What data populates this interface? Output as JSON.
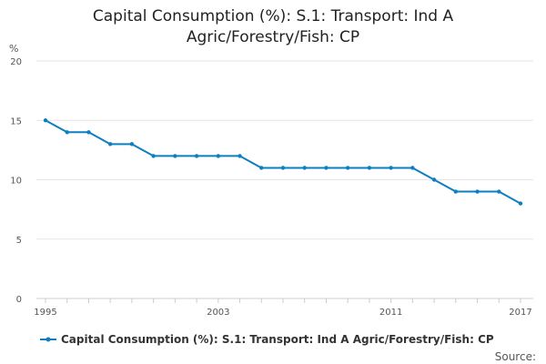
{
  "chart_data": {
    "type": "line",
    "title_lines": [
      "Capital Consumption (%): S.1: Transport: Ind A",
      "Agric/Forestry/Fish: CP"
    ],
    "y_unit": "%",
    "ylim": [
      0,
      20
    ],
    "y_ticks": [
      "0",
      "5",
      "10",
      "15",
      "20"
    ],
    "xlim": [
      1995,
      2017
    ],
    "x_ticks": [
      "1995",
      "2003",
      "2011",
      "2017"
    ],
    "series": [
      {
        "name": "Capital Consumption (%): S.1: Transport: Ind A Agric/Forestry/Fish: CP",
        "color": "#0b7fc1",
        "x": [
          1995,
          1996,
          1997,
          1998,
          1999,
          2000,
          2001,
          2002,
          2003,
          2004,
          2005,
          2006,
          2007,
          2008,
          2009,
          2010,
          2011,
          2012,
          2013,
          2014,
          2015,
          2016,
          2017
        ],
        "values": [
          15,
          14,
          14,
          13,
          13,
          12,
          12,
          12,
          12,
          12,
          11,
          11,
          11,
          11,
          11,
          11,
          11,
          11,
          10,
          9,
          9,
          9,
          8
        ]
      }
    ],
    "grid": true,
    "legend": "bottom",
    "source_label": "Source:"
  }
}
